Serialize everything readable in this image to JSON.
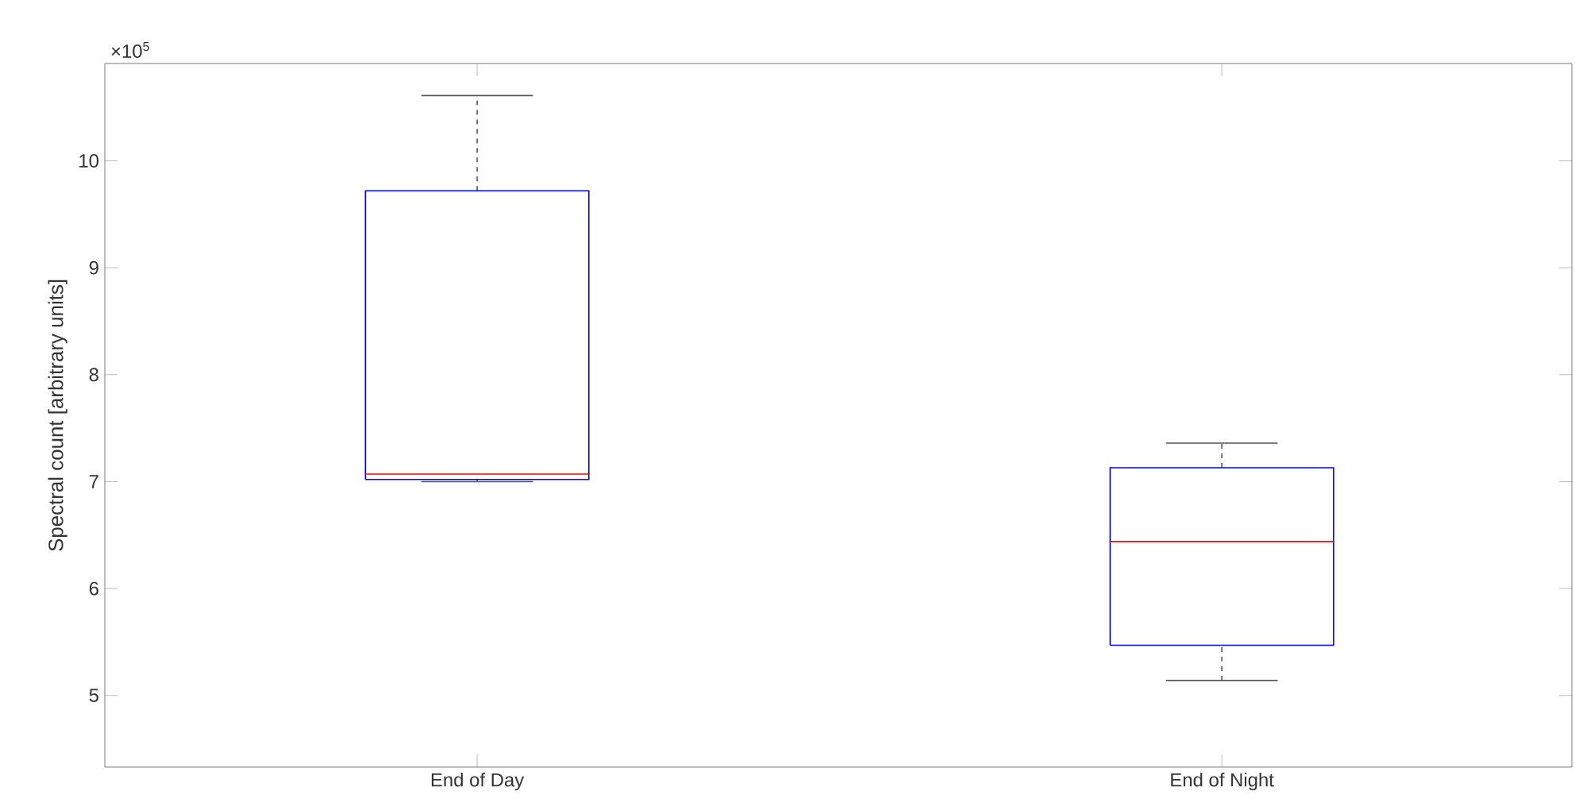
{
  "chart_data": {
    "type": "box",
    "ylabel": "Spectral count [arbitrary units]",
    "categories": [
      "End of Day",
      "End of Night"
    ],
    "boxes": [
      {
        "low": 7.0,
        "q1": 7.02,
        "median": 7.07,
        "q3": 9.72,
        "high": 10.61
      },
      {
        "low": 5.14,
        "q1": 5.47,
        "median": 6.44,
        "q3": 7.13,
        "high": 7.36
      }
    ],
    "color": "#0000ff",
    "ylim": [
      4.33,
      10.91
    ],
    "yticks": [
      5,
      6,
      7,
      8,
      9,
      10
    ],
    "annotations": [
      "×10$^{5}$"
    ],
    "grid": false
  }
}
